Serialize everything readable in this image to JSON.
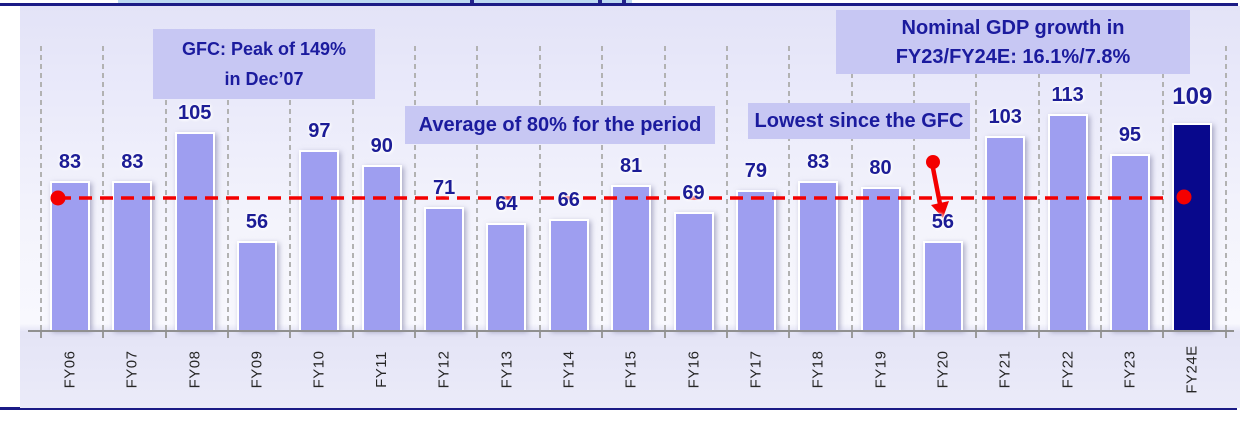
{
  "header": {
    "clipped_title_visible": false
  },
  "chart_data": {
    "type": "bar",
    "categories": [
      "FY06",
      "FY07",
      "FY08",
      "FY09",
      "FY10",
      "FY11",
      "FY12",
      "FY13",
      "FY14",
      "FY15",
      "FY16",
      "FY17",
      "FY18",
      "FY19",
      "FY20",
      "FY21",
      "FY22",
      "FY23",
      "FY24E"
    ],
    "values": [
      83,
      83,
      105,
      56,
      97,
      90,
      71,
      64,
      66,
      81,
      69,
      79,
      83,
      80,
      56,
      103,
      113,
      95,
      109
    ],
    "highlighted_category": "FY24E",
    "grid": "vertical-dashed",
    "legend": "none",
    "value_axis_visible": false,
    "reference_line": {
      "value": 80,
      "style": "red-dashed",
      "marker_categories": [
        "FY06",
        "FY20",
        "FY24E"
      ]
    },
    "annotations": {
      "gfc_peak": {
        "line1": "GFC: Peak of 149%",
        "line2": "in Dec’07"
      },
      "average": {
        "text": "Average of 80% for the period"
      },
      "lowest": {
        "text": "Lowest since the GFC"
      },
      "nominal_gdp": {
        "line1": "Nominal GDP growth in",
        "line2": "FY23/FY24E: 16.1%/7.8%"
      }
    },
    "colors": {
      "bar": "#9e9ef0",
      "bar_highlight": "#08088c",
      "value_label": "#1c1c96",
      "callout_bg": "#c7c7f3",
      "callout_text": "#1b1b9e",
      "reference_line": "#f40000",
      "gridline": "#b2b2b2",
      "axis": "#909090",
      "tick_label": "#262626",
      "frame_rule": "#1b1b86",
      "title_strip": "#bcd9f2"
    }
  }
}
